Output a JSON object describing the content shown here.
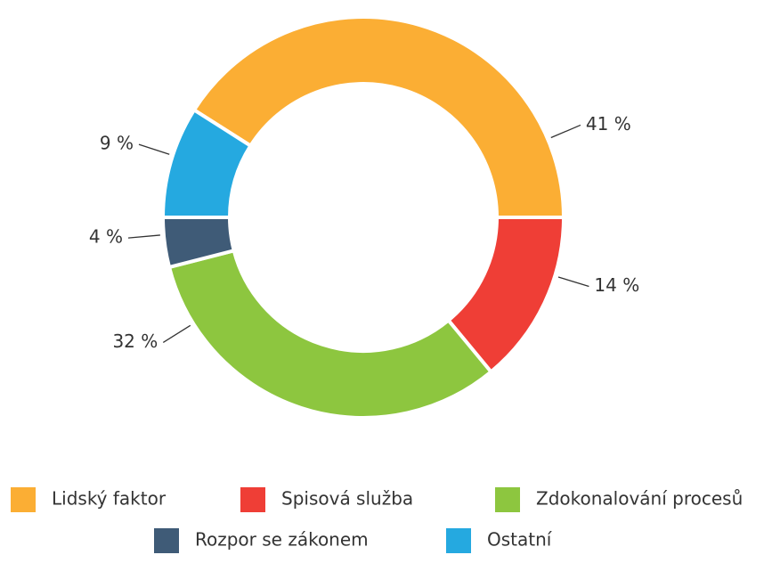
{
  "chart_data": {
    "type": "pie",
    "categories": [
      "Lidský faktor",
      "Spisová služba",
      "Zdokonalování procesů",
      "Rozpor se zákonem",
      "Ostatní"
    ],
    "values": [
      41,
      14,
      32,
      4,
      9
    ],
    "value_labels": [
      "41 %",
      "14 %",
      "32 %",
      "4 %",
      "9 %"
    ],
    "colors": [
      "#fbae34",
      "#ef3e36",
      "#8dc63f",
      "#3f5b77",
      "#25a9e0"
    ],
    "donut": true,
    "legend": "bottom"
  }
}
